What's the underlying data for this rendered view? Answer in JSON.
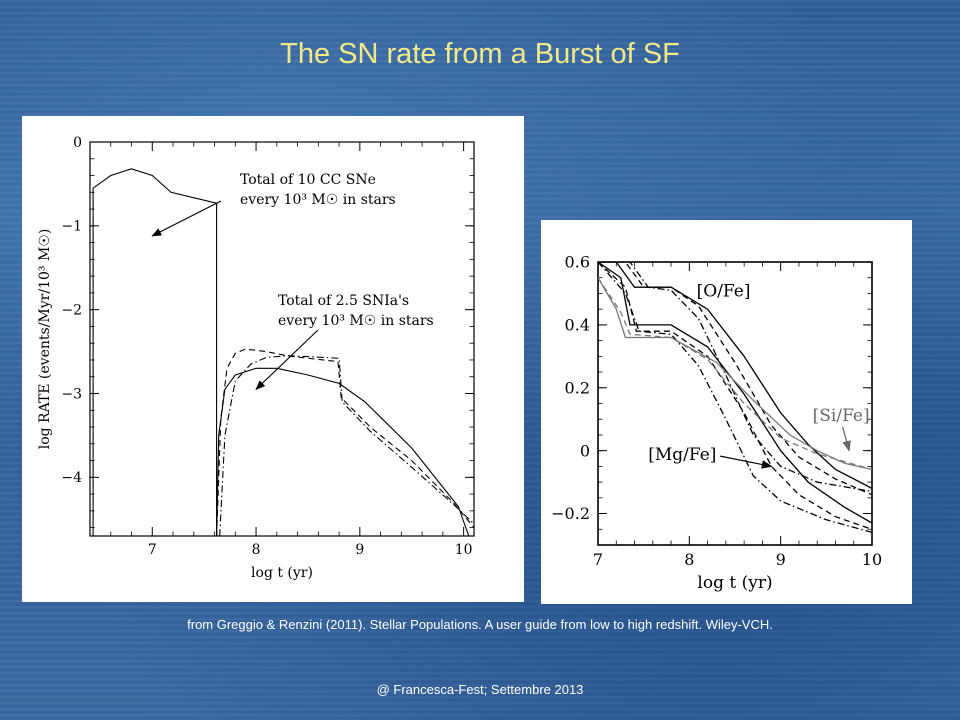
{
  "slide": {
    "title": "The SN rate from a Burst of SF",
    "citation": "from Greggio & Renzini (2011). Stellar Populations. A user guide from low to high redshift. Wiley-VCH.",
    "footer": "@ Francesca-Fest; Settembre 2013"
  },
  "chart_data": [
    {
      "type": "line",
      "xlabel": "log t (yr)",
      "ylabel": "log RATE (events/Myr/10³ M☉)",
      "xlim": [
        6.4,
        10.1
      ],
      "ylim": [
        -4.7,
        0
      ],
      "xticks": [
        7,
        8,
        9,
        10
      ],
      "yticks": [
        0,
        -1,
        -2,
        -3,
        -4
      ],
      "xtick_labels": [
        "7",
        "8",
        "9",
        "10"
      ],
      "ytick_labels": [
        "0",
        "−1",
        "−2",
        "−3",
        "−4"
      ],
      "annotations": [
        {
          "lines": [
            "Total of 10 CC SNe",
            "every 10³ M☉ in stars"
          ],
          "arrow_to": [
            7.0,
            -1.12
          ]
        },
        {
          "lines": [
            "Total of 2.5 SNIa's",
            "every 10³ M☉ in stars"
          ],
          "arrow_to": [
            8.0,
            -2.95
          ]
        }
      ],
      "series": [
        {
          "style": "solid",
          "points": [
            [
              6.43,
              -4.7
            ],
            [
              6.43,
              -0.55
            ],
            [
              6.6,
              -0.4
            ],
            [
              6.8,
              -0.32
            ],
            [
              7.0,
              -0.4
            ],
            [
              7.18,
              -0.6
            ],
            [
              7.62,
              -0.73
            ],
            [
              7.62,
              -4.7
            ]
          ]
        },
        {
          "style": "solid",
          "points": [
            [
              7.62,
              -4.7
            ],
            [
              7.64,
              -3.5
            ],
            [
              7.7,
              -2.95
            ],
            [
              7.8,
              -2.78
            ],
            [
              8.0,
              -2.7
            ],
            [
              8.2,
              -2.7
            ],
            [
              8.5,
              -2.78
            ],
            [
              8.8,
              -2.88
            ],
            [
              9.05,
              -3.1
            ],
            [
              9.5,
              -3.65
            ],
            [
              9.95,
              -4.35
            ],
            [
              10.05,
              -4.7
            ]
          ]
        },
        {
          "style": "dashed",
          "points": [
            [
              7.62,
              -4.7
            ],
            [
              7.66,
              -3.3
            ],
            [
              7.72,
              -2.7
            ],
            [
              7.8,
              -2.52
            ],
            [
              7.9,
              -2.47
            ],
            [
              8.1,
              -2.5
            ],
            [
              8.3,
              -2.55
            ],
            [
              8.5,
              -2.58
            ],
            [
              8.79,
              -2.62
            ],
            [
              8.82,
              -3.05
            ],
            [
              9.1,
              -3.4
            ],
            [
              9.5,
              -3.8
            ],
            [
              9.9,
              -4.3
            ],
            [
              10.12,
              -4.63
            ]
          ]
        },
        {
          "style": "dashdot",
          "points": [
            [
              7.65,
              -4.7
            ],
            [
              7.7,
              -3.5
            ],
            [
              7.8,
              -2.85
            ],
            [
              7.95,
              -2.65
            ],
            [
              8.1,
              -2.57
            ],
            [
              8.3,
              -2.55
            ],
            [
              8.5,
              -2.56
            ],
            [
              8.8,
              -2.58
            ],
            [
              8.83,
              -3.1
            ],
            [
              9.1,
              -3.45
            ],
            [
              9.5,
              -3.88
            ],
            [
              9.9,
              -4.32
            ],
            [
              10.12,
              -4.58
            ]
          ]
        }
      ]
    },
    {
      "type": "line",
      "xlabel": "log t (yr)",
      "xlim": [
        7,
        10
      ],
      "ylim": [
        -0.3,
        0.6
      ],
      "xticks": [
        7,
        8,
        9,
        10
      ],
      "yticks": [
        0.6,
        0.4,
        0.2,
        0,
        -0.2
      ],
      "xtick_labels": [
        "7",
        "8",
        "9",
        "10"
      ],
      "ytick_labels": [
        "0.6",
        "0.4",
        "0.2",
        "0",
        "−0.2"
      ],
      "annotations": [
        {
          "text": "[O/Fe]",
          "at": [
            8.08,
            0.49
          ]
        },
        {
          "text": "[Si/Fe]",
          "at": [
            9.35,
            0.095
          ],
          "color": "#666666",
          "arrow_to": [
            9.75,
            0.0
          ]
        },
        {
          "text": "[Mg/Fe]",
          "at": [
            7.55,
            -0.03
          ],
          "arrow_to": [
            8.9,
            -0.05
          ]
        }
      ],
      "series": [
        {
          "group": "O/Fe",
          "style": "solid",
          "points": [
            [
              7.0,
              0.6
            ],
            [
              7.2,
              0.6
            ],
            [
              7.4,
              0.52
            ],
            [
              7.8,
              0.52
            ],
            [
              8.2,
              0.45
            ],
            [
              8.6,
              0.3
            ],
            [
              9.0,
              0.12
            ],
            [
              9.3,
              0.02
            ],
            [
              9.6,
              -0.06
            ],
            [
              10.0,
              -0.12
            ]
          ]
        },
        {
          "group": "O/Fe",
          "style": "dashed",
          "points": [
            [
              7.0,
              0.6
            ],
            [
              7.3,
              0.6
            ],
            [
              7.5,
              0.52
            ],
            [
              7.8,
              0.52
            ],
            [
              8.1,
              0.46
            ],
            [
              8.5,
              0.28
            ],
            [
              8.9,
              0.08
            ],
            [
              9.2,
              -0.02
            ],
            [
              9.6,
              -0.09
            ],
            [
              10.0,
              -0.14
            ]
          ]
        },
        {
          "group": "O/Fe",
          "style": "dashdot",
          "points": [
            [
              7.0,
              0.6
            ],
            [
              7.35,
              0.6
            ],
            [
              7.55,
              0.52
            ],
            [
              7.8,
              0.51
            ],
            [
              8.1,
              0.42
            ],
            [
              8.4,
              0.24
            ],
            [
              8.7,
              0.05
            ],
            [
              9.0,
              -0.05
            ],
            [
              9.4,
              -0.1
            ],
            [
              10.0,
              -0.13
            ]
          ]
        },
        {
          "group": "Mg/Fe",
          "style": "solid",
          "points": [
            [
              7.0,
              0.6
            ],
            [
              7.25,
              0.55
            ],
            [
              7.35,
              0.4
            ],
            [
              7.8,
              0.4
            ],
            [
              8.2,
              0.33
            ],
            [
              8.6,
              0.18
            ],
            [
              9.0,
              0.0
            ],
            [
              9.3,
              -0.1
            ],
            [
              9.7,
              -0.18
            ],
            [
              10.0,
              -0.23
            ]
          ]
        },
        {
          "group": "Mg/Fe",
          "style": "dashed",
          "points": [
            [
              7.0,
              0.6
            ],
            [
              7.3,
              0.52
            ],
            [
              7.42,
              0.38
            ],
            [
              7.8,
              0.38
            ],
            [
              8.2,
              0.3
            ],
            [
              8.6,
              0.12
            ],
            [
              8.9,
              -0.05
            ],
            [
              9.2,
              -0.14
            ],
            [
              9.6,
              -0.21
            ],
            [
              10.0,
              -0.25
            ]
          ]
        },
        {
          "group": "Mg/Fe",
          "style": "dashdot",
          "points": [
            [
              7.0,
              0.6
            ],
            [
              7.3,
              0.5
            ],
            [
              7.45,
              0.38
            ],
            [
              7.8,
              0.37
            ],
            [
              8.1,
              0.27
            ],
            [
              8.4,
              0.1
            ],
            [
              8.7,
              -0.08
            ],
            [
              9.0,
              -0.16
            ],
            [
              9.5,
              -0.22
            ],
            [
              10.0,
              -0.26
            ]
          ]
        },
        {
          "group": "Si/Fe",
          "style": "solid",
          "color": "#777777",
          "points": [
            [
              7.0,
              0.55
            ],
            [
              7.2,
              0.45
            ],
            [
              7.3,
              0.36
            ],
            [
              7.8,
              0.36
            ],
            [
              8.3,
              0.28
            ],
            [
              8.7,
              0.16
            ],
            [
              9.1,
              0.05
            ],
            [
              9.4,
              0.0
            ],
            [
              9.7,
              -0.04
            ],
            [
              10.0,
              -0.06
            ]
          ]
        },
        {
          "group": "Si/Fe",
          "style": "dashed",
          "color": "#777777",
          "points": [
            [
              7.0,
              0.55
            ],
            [
              7.25,
              0.44
            ],
            [
              7.35,
              0.37
            ],
            [
              7.8,
              0.36
            ],
            [
              8.2,
              0.29
            ],
            [
              8.6,
              0.15
            ],
            [
              9.0,
              0.04
            ],
            [
              9.4,
              -0.01
            ],
            [
              10.0,
              -0.06
            ]
          ]
        }
      ]
    }
  ]
}
